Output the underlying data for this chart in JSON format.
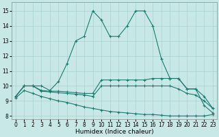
{
  "xlabel": "Humidex (Indice chaleur)",
  "xlim": [
    -0.5,
    23.5
  ],
  "ylim": [
    7.8,
    15.6
  ],
  "xtick_vals": [
    0,
    1,
    2,
    3,
    4,
    5,
    6,
    7,
    8,
    9,
    10,
    11,
    12,
    13,
    14,
    15,
    16,
    17,
    18,
    19,
    20,
    21,
    22,
    23
  ],
  "ytick_vals": [
    8,
    9,
    10,
    11,
    12,
    13,
    14,
    15
  ],
  "bg_color": "#c8e8e8",
  "grid_color": "#a8d0d0",
  "line_color": "#1a7a6e",
  "lines": [
    {
      "x": [
        0,
        1,
        2,
        3,
        4,
        5,
        6,
        7,
        8,
        9,
        10,
        11,
        12,
        13,
        14,
        15,
        16,
        17,
        18,
        19,
        20,
        21,
        22,
        23
      ],
      "y": [
        9.3,
        10.0,
        10.0,
        10.0,
        9.7,
        10.3,
        11.5,
        13.0,
        13.3,
        15.0,
        14.4,
        13.3,
        13.3,
        14.0,
        15.0,
        15.0,
        14.0,
        11.8,
        10.5,
        10.5,
        9.8,
        9.8,
        8.7,
        8.2
      ],
      "marker": "+"
    },
    {
      "x": [
        0,
        1,
        2,
        3,
        4,
        5,
        6,
        7,
        8,
        9,
        10,
        11,
        12,
        13,
        14,
        15,
        16,
        17,
        18,
        19,
        20,
        21,
        22,
        23
      ],
      "y": [
        9.3,
        10.0,
        10.0,
        9.7,
        9.65,
        9.65,
        9.6,
        9.55,
        9.5,
        9.5,
        10.4,
        10.4,
        10.4,
        10.4,
        10.4,
        10.4,
        10.5,
        10.5,
        10.5,
        10.5,
        9.8,
        9.8,
        9.3,
        8.5
      ],
      "marker": "+"
    },
    {
      "x": [
        0,
        1,
        2,
        3,
        4,
        5,
        6,
        7,
        8,
        9,
        10,
        11,
        12,
        13,
        14,
        15,
        16,
        17,
        18,
        19,
        20,
        21,
        22,
        23
      ],
      "y": [
        9.3,
        10.0,
        10.0,
        9.65,
        9.6,
        9.55,
        9.5,
        9.45,
        9.4,
        9.3,
        10.0,
        10.0,
        10.0,
        10.0,
        10.0,
        10.0,
        10.0,
        10.0,
        10.0,
        9.8,
        9.5,
        9.4,
        9.0,
        8.5
      ],
      "marker": "+"
    },
    {
      "x": [
        0,
        1,
        2,
        3,
        4,
        5,
        6,
        7,
        8,
        9,
        10,
        11,
        12,
        13,
        14,
        15,
        16,
        17,
        18,
        19,
        20,
        21,
        22,
        23
      ],
      "y": [
        9.2,
        9.7,
        9.5,
        9.3,
        9.15,
        9.0,
        8.9,
        8.75,
        8.6,
        8.5,
        8.4,
        8.3,
        8.25,
        8.2,
        8.15,
        8.1,
        8.1,
        8.05,
        8.0,
        8.0,
        8.0,
        8.0,
        8.0,
        8.1
      ],
      "marker": "+"
    }
  ]
}
